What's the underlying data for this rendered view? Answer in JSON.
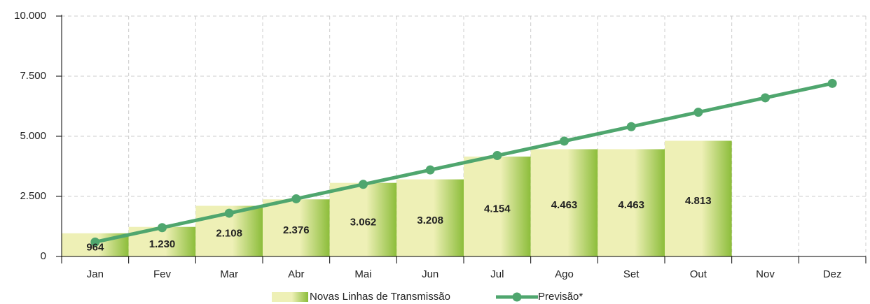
{
  "chart_data": {
    "type": "bar",
    "categories": [
      "Jan",
      "Fev",
      "Mar",
      "Abr",
      "Mai",
      "Jun",
      "Jul",
      "Ago",
      "Set",
      "Out",
      "Nov",
      "Dez"
    ],
    "series": [
      {
        "name": "Novas Linhas de Transmissão",
        "type": "bar",
        "color": [
          "#eef0b6",
          "#8cbd3a"
        ],
        "values": [
          964,
          1230,
          2108,
          2376,
          3062,
          3208,
          4154,
          4463,
          4463,
          4813,
          null,
          null
        ],
        "value_labels": [
          "964",
          "1.230",
          "2.108",
          "2.376",
          "3.062",
          "3.208",
          "4.154",
          "4.463",
          "4.463",
          "4.813",
          null,
          null
        ]
      },
      {
        "name": "Previsão*",
        "type": "line",
        "color": "#4fa66e",
        "values": [
          600,
          1200,
          1800,
          2400,
          3000,
          3600,
          4200,
          4800,
          5400,
          6000,
          6600,
          7200
        ]
      }
    ],
    "ylim": [
      0,
      10000
    ],
    "yticks": [
      0,
      {
        "value": 2500,
        "label": "2.500"
      },
      {
        "value": 5000,
        "label": "5.000"
      },
      {
        "value": 7500,
        "label": "7.500"
      },
      {
        "value": 10000,
        "label": "10.000"
      }
    ],
    "grid": true,
    "legend": "bottom"
  }
}
